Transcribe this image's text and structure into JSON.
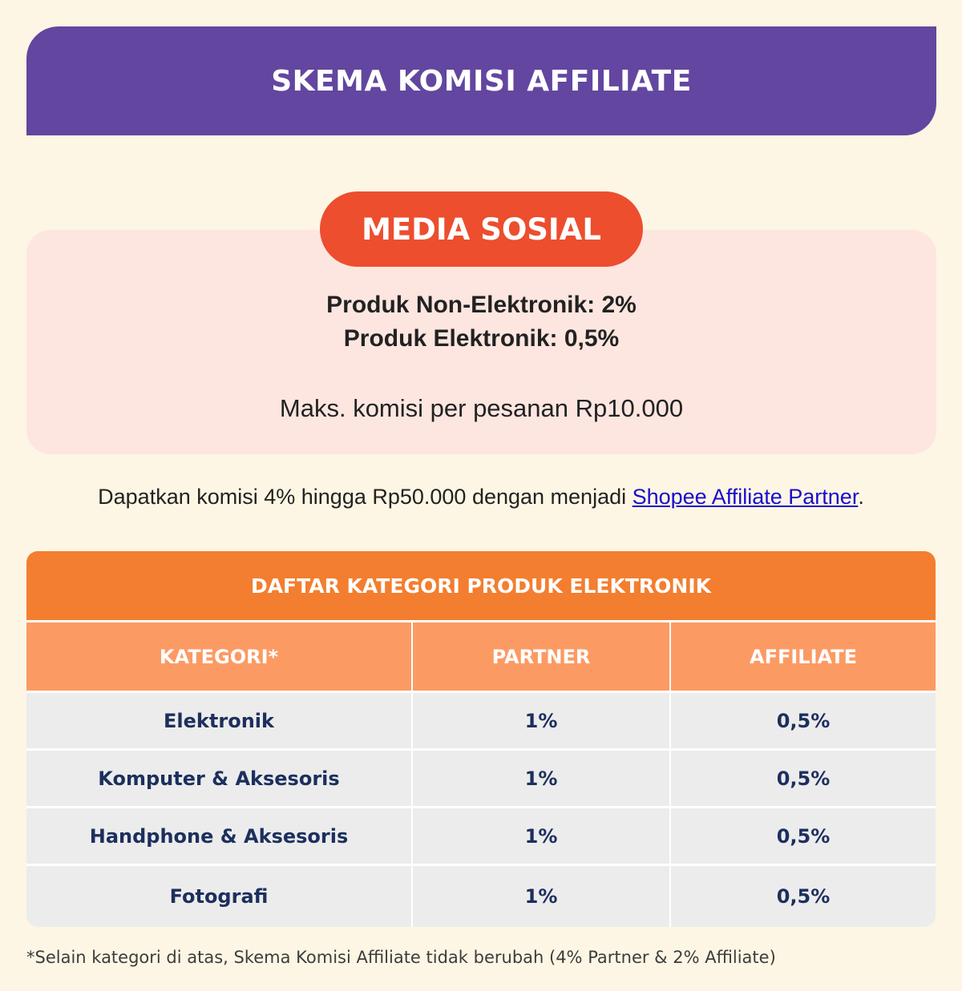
{
  "banner": {
    "title": "SKEMA KOMISI AFFILIATE"
  },
  "media_sosial": {
    "label": "MEDIA SOSIAL",
    "lines": [
      "Produk Non-Elektronik: 2%",
      "Produk Elektronik: 0,5%"
    ],
    "max_commission": "Maks. komisi per pesanan Rp10.000"
  },
  "promo": {
    "text": "Dapatkan komisi 4% hingga Rp50.000 dengan menjadi ",
    "link_text": "Shopee Affiliate Partner",
    "suffix": "."
  },
  "table": {
    "title": "DAFTAR KATEGORI PRODUK ELEKTRONIK",
    "headers": [
      "KATEGORI*",
      "PARTNER",
      "AFFILIATE"
    ],
    "rows": [
      [
        "Elektronik",
        "1%",
        "0,5%"
      ],
      [
        "Komputer & Aksesoris",
        "1%",
        "0,5%"
      ],
      [
        "Handphone & Aksesoris",
        "1%",
        "0,5%"
      ],
      [
        "Fotografi",
        "1%",
        "0,5%"
      ]
    ]
  },
  "footnote": "*Selain kategori di atas, Skema Komisi Affiliate tidak berubah (4% Partner & 2% Affiliate)",
  "colors": {
    "background": "#fdf6e4",
    "banner": "#63469f",
    "pill": "#ec4e2e",
    "media_box": "#fde6e0",
    "table_title": "#f37e2f",
    "table_header": "#fc9a63",
    "table_cell": "#ececec",
    "table_text": "#1c2f5e",
    "link": "#1a0dcc"
  }
}
